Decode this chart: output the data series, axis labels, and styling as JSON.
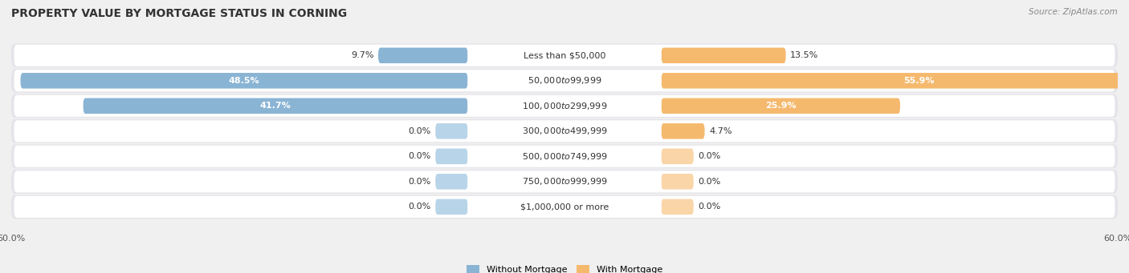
{
  "title": "PROPERTY VALUE BY MORTGAGE STATUS IN CORNING",
  "source": "Source: ZipAtlas.com",
  "categories": [
    "Less than $50,000",
    "$50,000 to $99,999",
    "$100,000 to $299,999",
    "$300,000 to $499,999",
    "$500,000 to $749,999",
    "$750,000 to $999,999",
    "$1,000,000 or more"
  ],
  "without_mortgage": [
    9.7,
    48.5,
    41.7,
    0.0,
    0.0,
    0.0,
    0.0
  ],
  "with_mortgage": [
    13.5,
    55.9,
    25.9,
    4.7,
    0.0,
    0.0,
    0.0
  ],
  "color_without": "#8ab4d4",
  "color_with": "#f5b96e",
  "color_without_stub": "#b8d4e8",
  "color_with_stub": "#f9d5a8",
  "max_val": 60.0,
  "stub_val": 3.5,
  "legend_label_without": "Without Mortgage",
  "legend_label_with": "With Mortgage",
  "bg_color": "#f0f0f0",
  "row_bg_color": "#e8e8ec",
  "title_fontsize": 10,
  "label_fontsize": 8,
  "cat_fontsize": 8,
  "tick_fontsize": 8,
  "source_fontsize": 7.5
}
